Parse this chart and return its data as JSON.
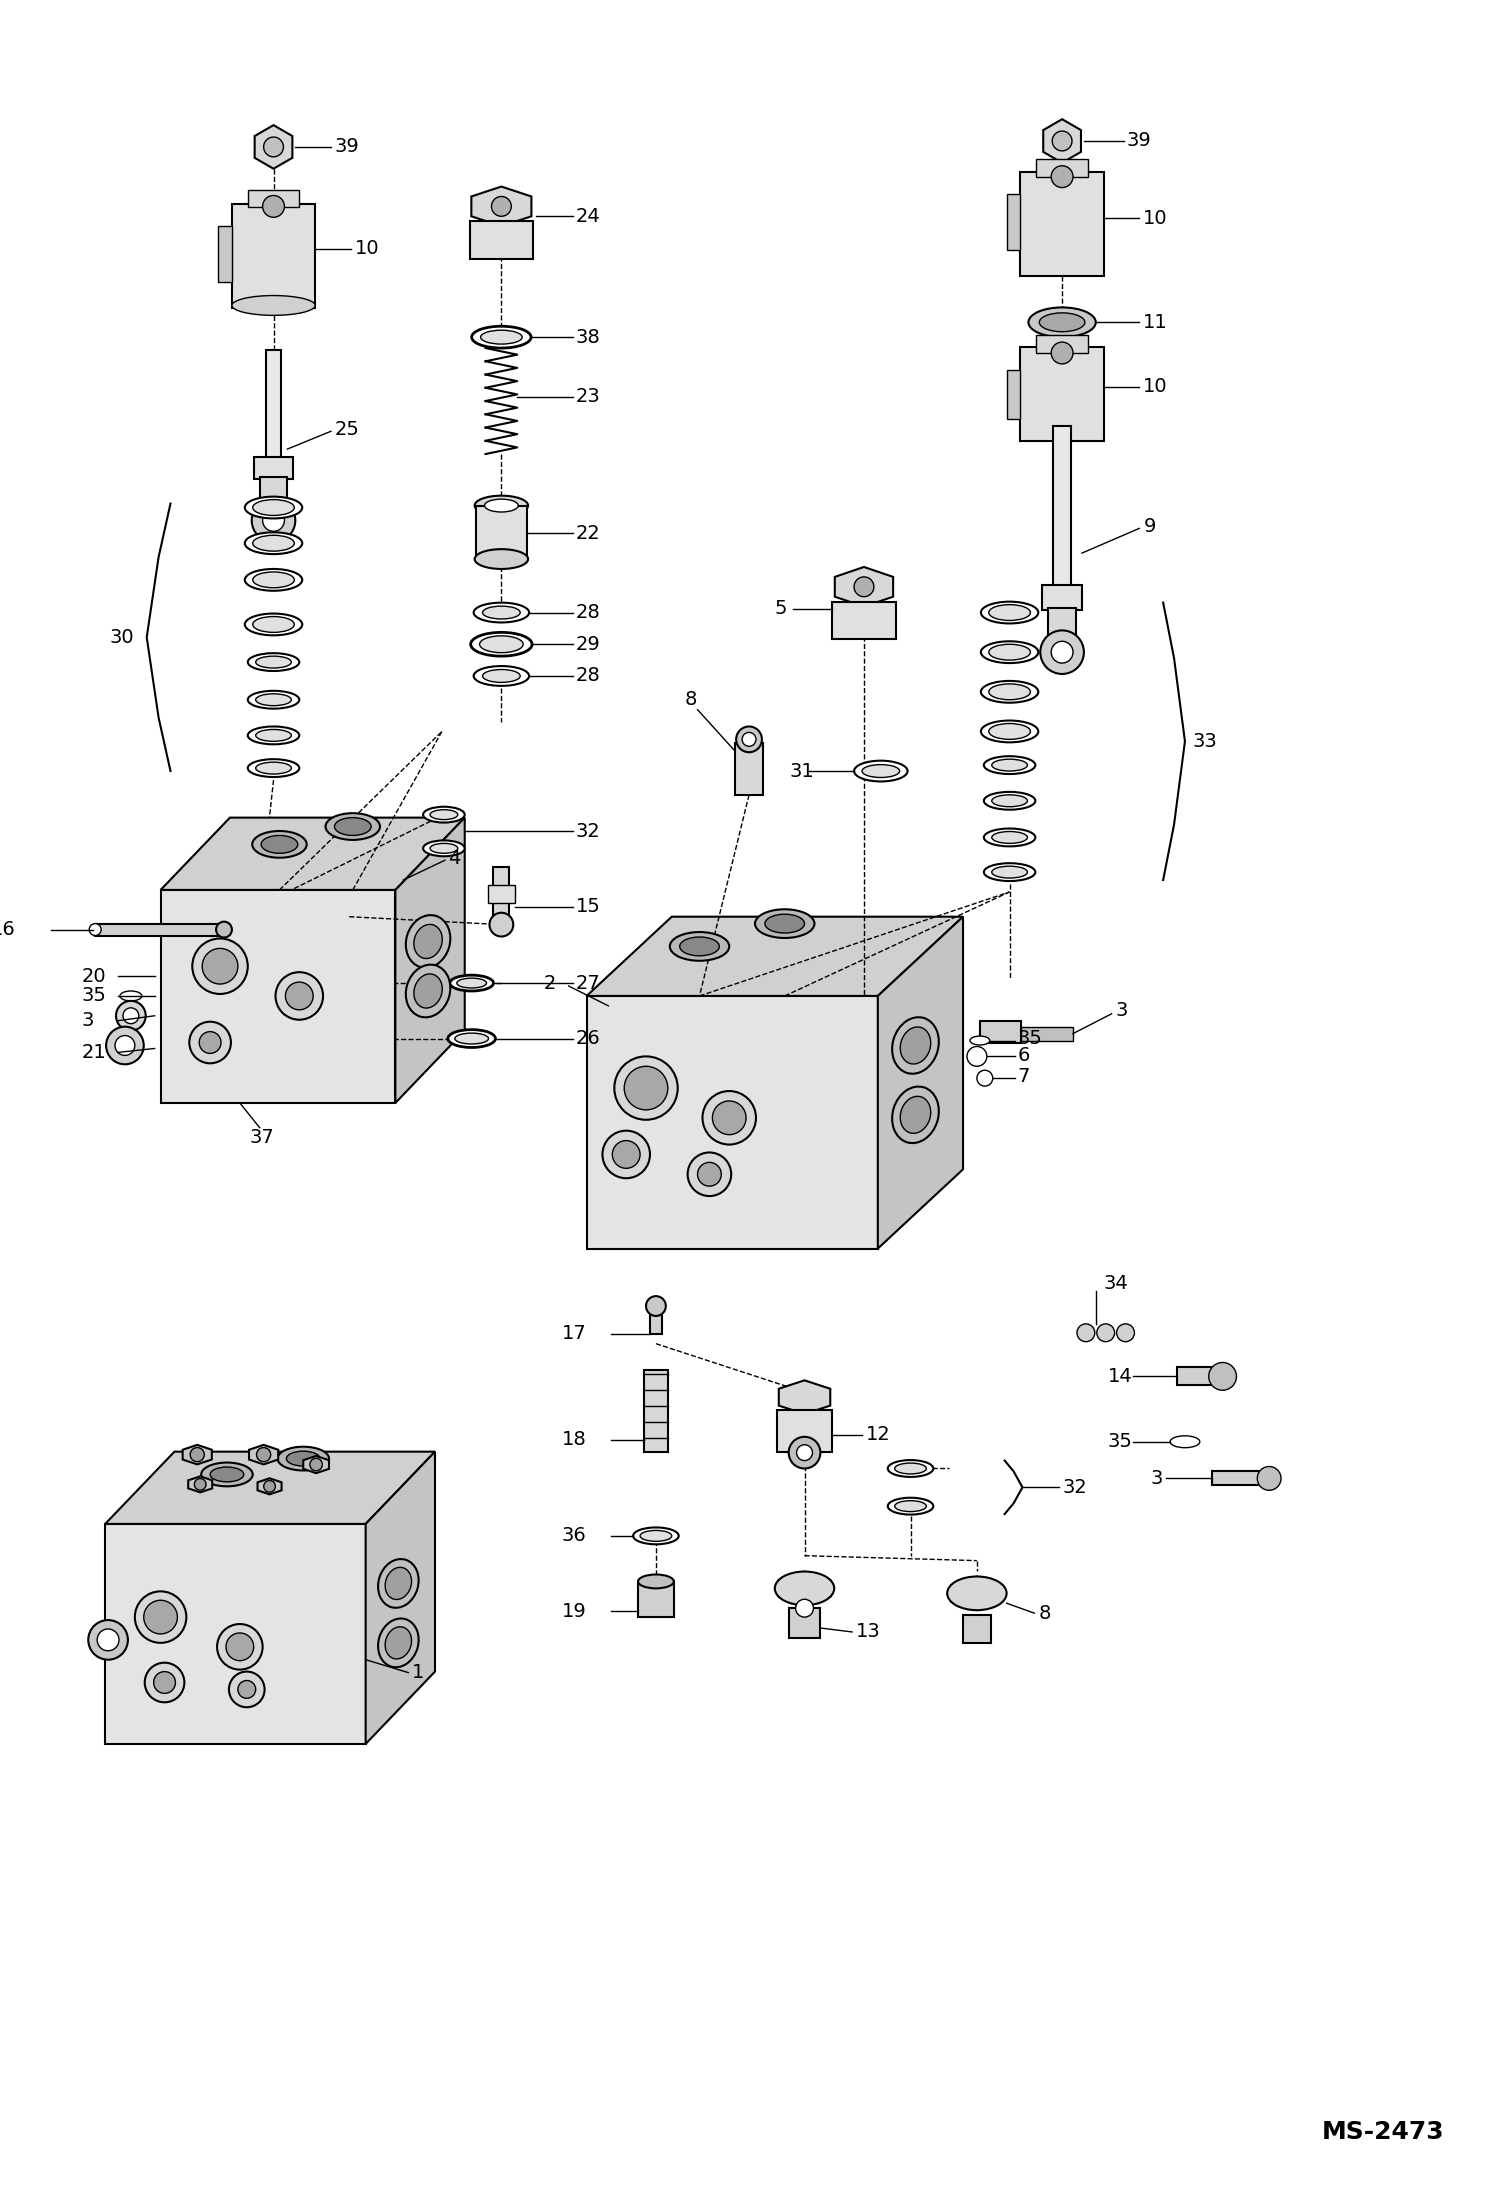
{
  "background_color": "#ffffff",
  "watermark": "MS-2473",
  "fig_width": 14.98,
  "fig_height": 21.93,
  "dpi": 100
}
